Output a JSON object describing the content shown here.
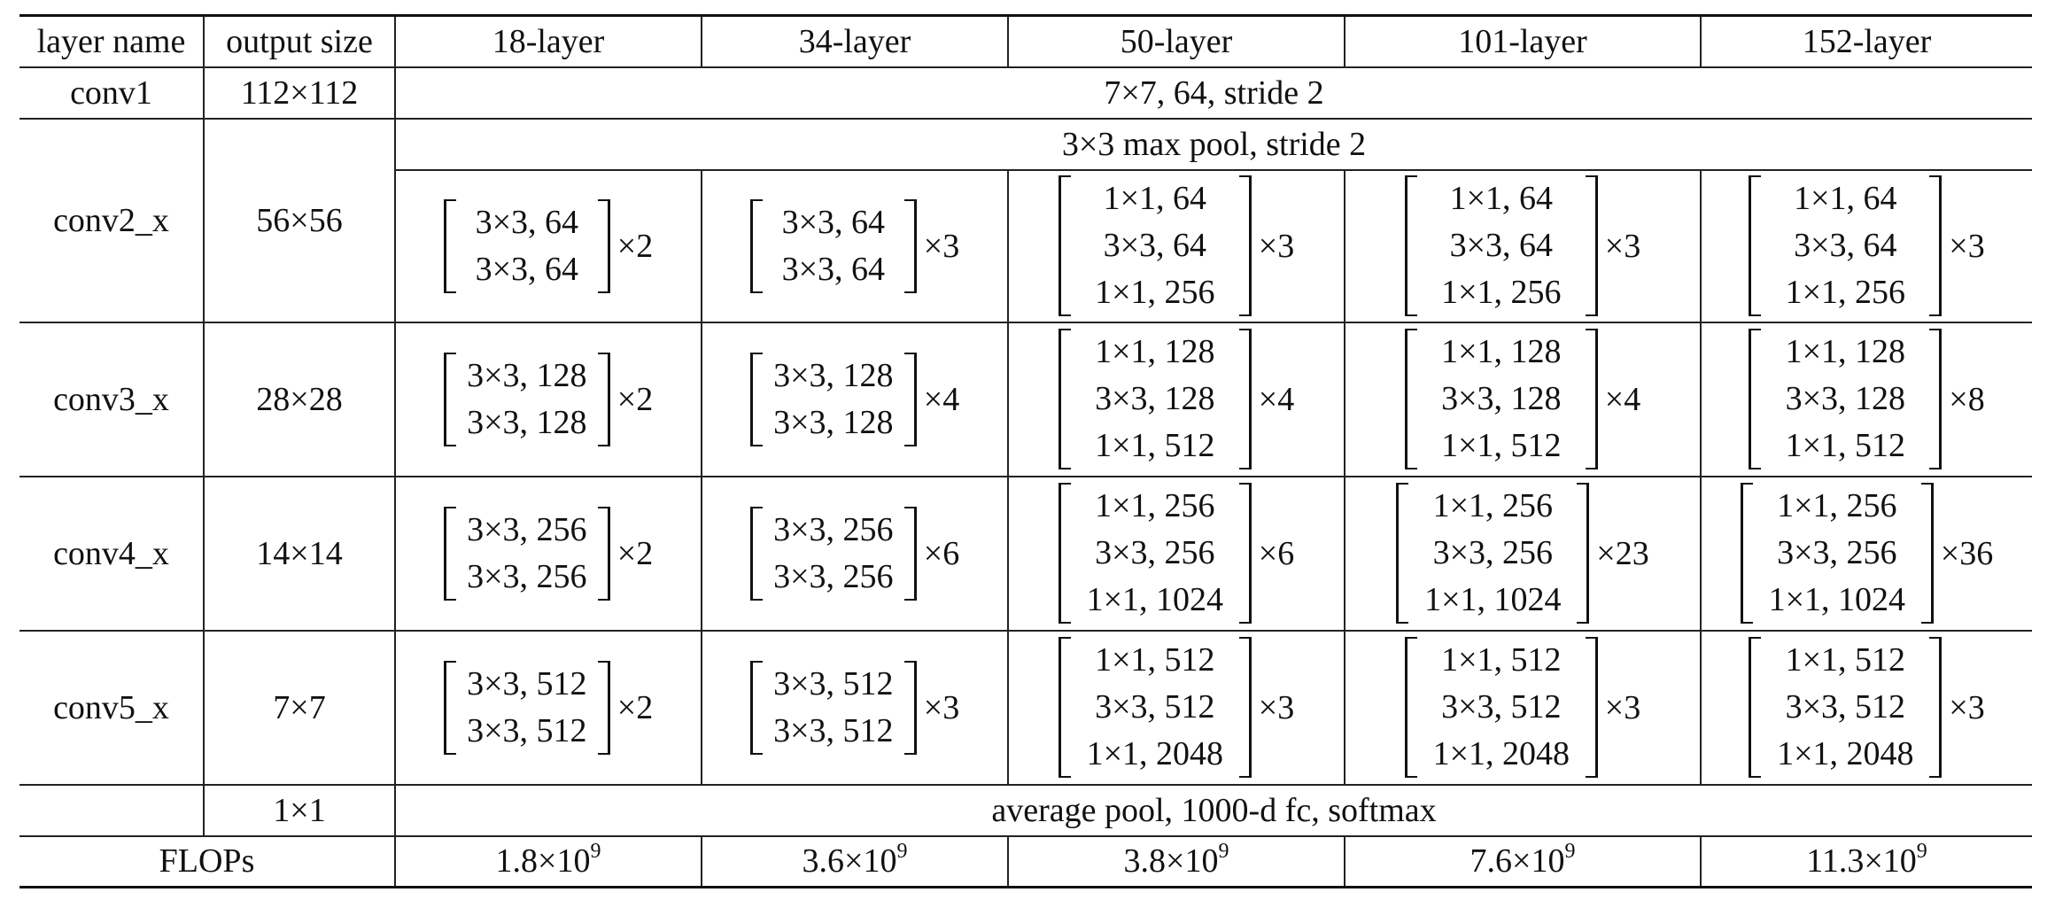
{
  "headers": [
    "layer name",
    "output size",
    "18-layer",
    "34-layer",
    "50-layer",
    "101-layer",
    "152-layer"
  ],
  "conv1": {
    "name": "conv1",
    "size": "112×112",
    "desc": "7×7, 64, stride 2"
  },
  "pool": {
    "desc": "3×3 max pool, stride 2"
  },
  "conv2": {
    "name": "conv2_x",
    "size": "56×56",
    "blocks": [
      {
        "lines": [
          "3×3, 64",
          "3×3, 64"
        ],
        "mult": "×2"
      },
      {
        "lines": [
          "3×3, 64",
          "3×3, 64"
        ],
        "mult": "×3"
      },
      {
        "lines": [
          "1×1, 64",
          "3×3, 64",
          "1×1, 256"
        ],
        "mult": "×3"
      },
      {
        "lines": [
          "1×1, 64",
          "3×3, 64",
          "1×1, 256"
        ],
        "mult": "×3"
      },
      {
        "lines": [
          "1×1, 64",
          "3×3, 64",
          "1×1, 256"
        ],
        "mult": "×3"
      }
    ]
  },
  "conv3": {
    "name": "conv3_x",
    "size": "28×28",
    "blocks": [
      {
        "lines": [
          "3×3, 128",
          "3×3, 128"
        ],
        "mult": "×2"
      },
      {
        "lines": [
          "3×3, 128",
          "3×3, 128"
        ],
        "mult": "×4"
      },
      {
        "lines": [
          "1×1, 128",
          "3×3, 128",
          "1×1, 512"
        ],
        "mult": "×4"
      },
      {
        "lines": [
          "1×1, 128",
          "3×3, 128",
          "1×1, 512"
        ],
        "mult": "×4"
      },
      {
        "lines": [
          "1×1, 128",
          "3×3, 128",
          "1×1, 512"
        ],
        "mult": "×8"
      }
    ]
  },
  "conv4": {
    "name": "conv4_x",
    "size": "14×14",
    "blocks": [
      {
        "lines": [
          "3×3, 256",
          "3×3, 256"
        ],
        "mult": "×2"
      },
      {
        "lines": [
          "3×3, 256",
          "3×3, 256"
        ],
        "mult": "×6"
      },
      {
        "lines": [
          "1×1, 256",
          "3×3, 256",
          "1×1, 1024"
        ],
        "mult": "×6"
      },
      {
        "lines": [
          "1×1, 256",
          "3×3, 256",
          "1×1, 1024"
        ],
        "mult": "×23"
      },
      {
        "lines": [
          "1×1, 256",
          "3×3, 256",
          "1×1, 1024"
        ],
        "mult": "×36"
      }
    ]
  },
  "conv5": {
    "name": "conv5_x",
    "size": "7×7",
    "blocks": [
      {
        "lines": [
          "3×3, 512",
          "3×3, 512"
        ],
        "mult": "×2"
      },
      {
        "lines": [
          "3×3, 512",
          "3×3, 512"
        ],
        "mult": "×3"
      },
      {
        "lines": [
          "1×1, 512",
          "3×3, 512",
          "1×1, 2048"
        ],
        "mult": "×3"
      },
      {
        "lines": [
          "1×1, 512",
          "3×3, 512",
          "1×1, 2048"
        ],
        "mult": "×3"
      },
      {
        "lines": [
          "1×1, 512",
          "3×3, 512",
          "1×1, 2048"
        ],
        "mult": "×3"
      }
    ]
  },
  "final": {
    "name": "",
    "size": "1×1",
    "desc": "average pool, 1000-d fc, softmax"
  },
  "flops": {
    "label": "FLOPs",
    "values": [
      {
        "mantissa": "1.8×10",
        "exp": "9"
      },
      {
        "mantissa": "3.6×10",
        "exp": "9"
      },
      {
        "mantissa": "3.8×10",
        "exp": "9"
      },
      {
        "mantissa": "7.6×10",
        "exp": "9"
      },
      {
        "mantissa": "11.3×10",
        "exp": "9"
      }
    ]
  }
}
